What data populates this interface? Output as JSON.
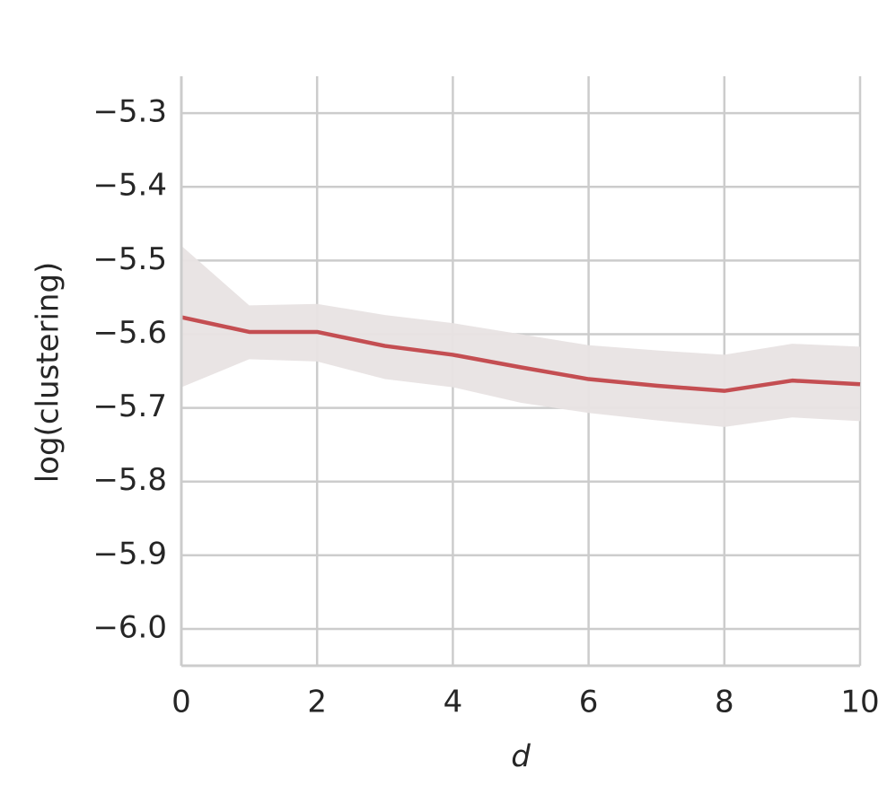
{
  "chart_data": {
    "type": "line",
    "xlabel": "d",
    "ylabel": "log(clustering)",
    "x": [
      0,
      1,
      2,
      3,
      4,
      5,
      6,
      7,
      8,
      9,
      10
    ],
    "values": [
      -5.577,
      -5.597,
      -5.597,
      -5.616,
      -5.628,
      -5.645,
      -5.661,
      -5.67,
      -5.677,
      -5.663,
      -5.668
    ],
    "upper": [
      -5.48,
      -5.561,
      -5.559,
      -5.574,
      -5.585,
      -5.6,
      -5.615,
      -5.622,
      -5.628,
      -5.613,
      -5.617
    ],
    "lower": [
      -5.672,
      -5.634,
      -5.637,
      -5.661,
      -5.672,
      -5.693,
      -5.707,
      -5.717,
      -5.726,
      -5.713,
      -5.718
    ],
    "color": "#c44e52",
    "band_color": "#e8e3e3",
    "xlim": [
      0,
      10
    ],
    "ylim": [
      -6.05,
      -5.25
    ],
    "xticks": [
      0,
      2,
      4,
      6,
      8,
      10
    ],
    "yticks": [
      {
        "value": -6.0,
        "label": "−6.0"
      },
      {
        "value": -5.9,
        "label": "−5.9"
      },
      {
        "value": -5.8,
        "label": "−5.8"
      },
      {
        "value": -5.7,
        "label": "−5.7"
      },
      {
        "value": -5.6,
        "label": "−5.6"
      },
      {
        "value": -5.5,
        "label": "−5.5"
      },
      {
        "value": -5.4,
        "label": "−5.4"
      },
      {
        "value": -5.3,
        "label": "−5.3"
      }
    ],
    "grid": true
  }
}
